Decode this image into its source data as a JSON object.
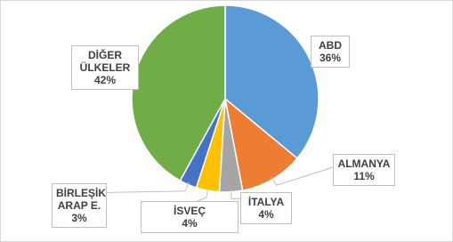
{
  "chart_data": {
    "type": "pie",
    "categories": [
      "ABD",
      "ALMANYA",
      "İTALYA",
      "İSVEÇ",
      "BİRLEŞİK ARAP E.",
      "DİĞER ÜLKELER"
    ],
    "values": [
      36,
      11,
      4,
      4,
      3,
      42
    ],
    "value_labels": [
      "36%",
      "11%",
      "4%",
      "4%",
      "3%",
      "42%"
    ],
    "colors": [
      "#5b9bd5",
      "#ed7d31",
      "#a5a5a5",
      "#ffc000",
      "#4472c4",
      "#70ad47"
    ]
  }
}
